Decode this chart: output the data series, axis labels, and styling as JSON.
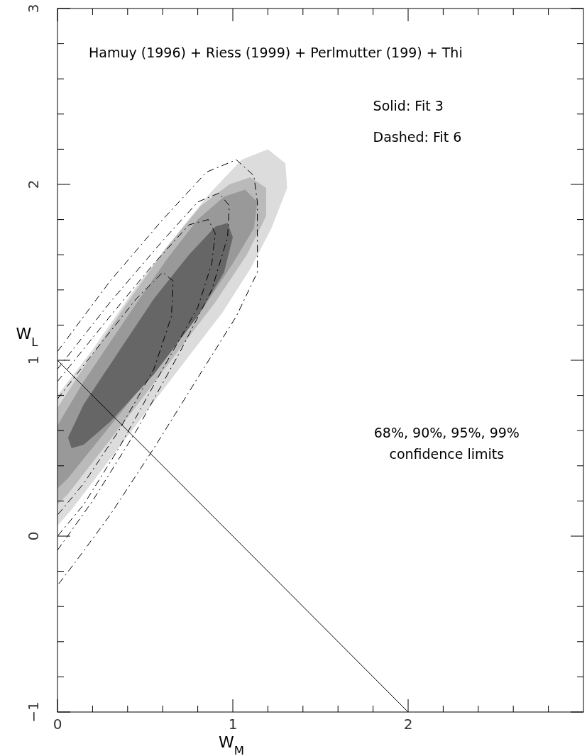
{
  "chart_data": {
    "type": "line",
    "title": "Hamuy (1996) + Riess (1999) + Perlmutter (199) + Thi",
    "xlabel": "W$_{M}$",
    "ylabel": "W$_{L}$",
    "annotations": [
      "Solid: Fit 3",
      "Dashed: Fit 6",
      "68%, 90%, 95%, 99%\nconfidence limits"
    ],
    "xlim": [
      0,
      3
    ],
    "ylim": [
      -1,
      3
    ],
    "xticks": [
      0,
      {
        "value": 0.2,
        "label": null
      },
      {
        "value": 0.4,
        "label": null
      },
      {
        "value": 0.6,
        "label": null
      },
      {
        "value": 0.8,
        "label": null
      },
      1,
      {
        "value": 1.2,
        "label": null
      },
      {
        "value": 1.4,
        "label": null
      },
      {
        "value": 1.6,
        "label": null
      },
      {
        "value": 1.8,
        "label": null
      },
      2,
      {
        "value": 2.2,
        "label": null
      },
      {
        "value": 2.4,
        "label": null
      },
      {
        "value": 2.6,
        "label": null
      },
      {
        "value": 2.8,
        "label": null
      }
    ],
    "yticks": [
      -1,
      {
        "value": -0.8,
        "label": null
      },
      {
        "value": -0.6,
        "label": null
      },
      {
        "value": -0.4,
        "label": null
      },
      {
        "value": -0.2,
        "label": null
      },
      0,
      {
        "value": 0.2,
        "label": null
      },
      {
        "value": 0.4,
        "label": null
      },
      {
        "value": 0.6,
        "label": null
      },
      {
        "value": 0.8,
        "label": null
      },
      1,
      {
        "value": 1.2,
        "label": null
      },
      {
        "value": 1.4,
        "label": null
      },
      {
        "value": 1.6,
        "label": null
      },
      {
        "value": 1.8,
        "label": null
      },
      2,
      {
        "value": 2.2,
        "label": null
      },
      {
        "value": 2.4,
        "label": null
      },
      {
        "value": 2.6,
        "label": null
      },
      {
        "value": 2.8,
        "label": null
      },
      3
    ],
    "series": [
      {
        "type": "area",
        "color": "#dcdcdc",
        "x": [
          0,
          0,
          0.2,
          0.45,
          0.7,
          0.86,
          1.05,
          1.2,
          1.3,
          1.31,
          1.22,
          1.1,
          0.94,
          0.5,
          0.08,
          0
        ],
        "values": [
          0.06,
          0.8,
          1.06,
          1.42,
          1.74,
          1.94,
          2.14,
          2.2,
          2.12,
          1.98,
          1.75,
          1.52,
          1.27,
          0.7,
          0.15,
          0.06
        ]
      },
      {
        "type": "area",
        "color": "#bababa",
        "x": [
          0,
          0,
          0.15,
          0.4,
          0.62,
          0.82,
          0.98,
          1.1,
          1.19,
          1.19,
          1.08,
          0.9,
          0.45,
          0.06,
          0
        ],
        "values": [
          0.18,
          0.73,
          0.96,
          1.33,
          1.64,
          1.88,
          2.0,
          2.04,
          1.98,
          1.82,
          1.6,
          1.33,
          0.74,
          0.24,
          0.18
        ]
      },
      {
        "type": "area",
        "color": "#999999",
        "x": [
          0,
          0,
          0.15,
          0.4,
          0.62,
          0.8,
          0.95,
          1.07,
          1.14,
          1.12,
          1.0,
          0.82,
          0.4,
          0.06,
          0
        ],
        "values": [
          0.27,
          0.63,
          0.88,
          1.25,
          1.57,
          1.8,
          1.93,
          1.97,
          1.9,
          1.75,
          1.55,
          1.28,
          0.75,
          0.33,
          0.27
        ]
      },
      {
        "type": "area",
        "color": "#666666",
        "x": [
          0.08,
          0.06,
          0.15,
          0.35,
          0.55,
          0.75,
          0.9,
          0.97,
          1.0,
          0.95,
          0.8,
          0.55,
          0.3,
          0.15,
          0.08
        ],
        "values": [
          0.5,
          0.56,
          0.75,
          1.05,
          1.35,
          1.6,
          1.76,
          1.78,
          1.7,
          1.5,
          1.25,
          0.92,
          0.65,
          0.52,
          0.5
        ]
      },
      {
        "line_style": "dashed",
        "color": "#000000",
        "x": [
          0,
          0.3,
          0.6,
          0.85,
          1.02,
          1.12,
          1.14,
          1.14,
          1.02,
          0.8,
          0.55,
          0.3,
          0.1,
          0
        ],
        "values": [
          1.05,
          1.45,
          1.8,
          2.07,
          2.14,
          2.05,
          1.9,
          1.5,
          1.25,
          0.9,
          0.5,
          0.12,
          -0.15,
          -0.28
        ]
      },
      {
        "line_style": "dashed",
        "color": "#000000",
        "x": [
          0,
          0.3,
          0.6,
          0.8,
          0.92,
          0.98,
          0.97,
          0.88,
          0.7,
          0.45,
          0.2,
          0
        ],
        "values": [
          0.95,
          1.33,
          1.68,
          1.9,
          1.95,
          1.88,
          1.7,
          1.4,
          1.05,
          0.6,
          0.2,
          -0.08
        ]
      },
      {
        "line_style": "dashed",
        "color": "#000000",
        "x": [
          0,
          0.3,
          0.55,
          0.75,
          0.86,
          0.9,
          0.88,
          0.8,
          0.6,
          0.35,
          0.15,
          0
        ],
        "values": [
          0.88,
          1.25,
          1.55,
          1.77,
          1.8,
          1.72,
          1.55,
          1.3,
          0.95,
          0.5,
          0.18,
          0.0
        ]
      },
      {
        "line_style": "dashed",
        "color": "#000000",
        "x": [
          0,
          0.25,
          0.45,
          0.6,
          0.66,
          0.65,
          0.55,
          0.35,
          0.15,
          0
        ],
        "values": [
          0.78,
          1.1,
          1.35,
          1.5,
          1.45,
          1.25,
          0.95,
          0.6,
          0.3,
          0.12
        ]
      },
      {
        "line_style": "solid",
        "color": "#000000",
        "x": [
          0,
          2
        ],
        "values": [
          1,
          -1
        ]
      }
    ]
  }
}
